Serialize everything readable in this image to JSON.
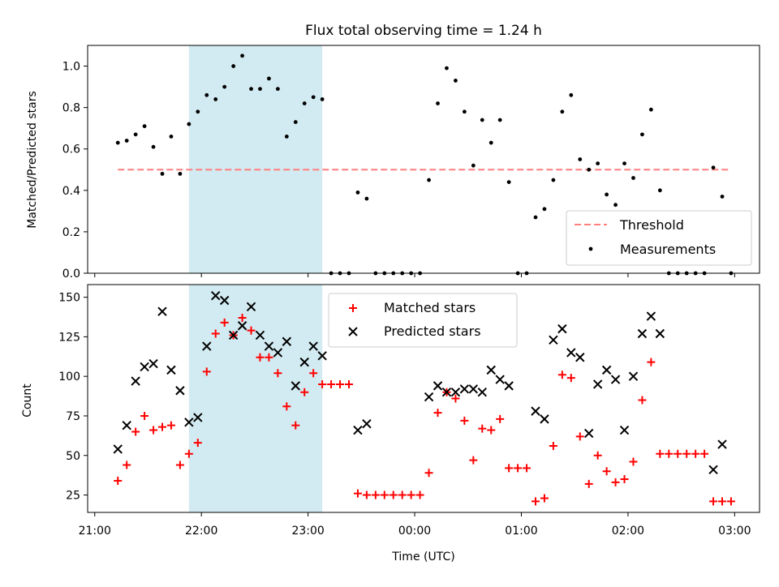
{
  "title": "Flux total observing time = 1.24 h",
  "colors": {
    "shade": "#add8e6",
    "threshold": "#ff7f7f",
    "measurement": "#000000",
    "matched": "#ff0000",
    "predicted": "#000000"
  },
  "chart_data": [
    {
      "type": "scatter",
      "ylabel": "Matched/Predicted stars",
      "ylim": [
        0,
        1.1
      ],
      "yticks": [
        0.0,
        0.2,
        0.4,
        0.6,
        0.8,
        1.0
      ],
      "ytick_labels": [
        "0.0",
        "0.2",
        "0.4",
        "0.6",
        "0.8",
        "1.0"
      ],
      "shaded_span": [
        "21:53",
        "23:08"
      ],
      "threshold": {
        "name": "Threshold",
        "value": 0.5,
        "x_range": [
          "21:13",
          "02:58"
        ]
      },
      "legend": {
        "placement": "lower-right",
        "entries": [
          "Threshold",
          "Measurements"
        ]
      },
      "series": [
        {
          "name": "Measurements",
          "points": [
            [
              "21:13",
              0.63
            ],
            [
              "21:18",
              0.64
            ],
            [
              "21:23",
              0.67
            ],
            [
              "21:28",
              0.71
            ],
            [
              "21:33",
              0.61
            ],
            [
              "21:38",
              0.48
            ],
            [
              "21:43",
              0.66
            ],
            [
              "21:48",
              0.48
            ],
            [
              "21:53",
              0.72
            ],
            [
              "21:58",
              0.78
            ],
            [
              "22:03",
              0.86
            ],
            [
              "22:08",
              0.84
            ],
            [
              "22:13",
              0.9
            ],
            [
              "22:18",
              1.0
            ],
            [
              "22:23",
              1.05
            ],
            [
              "22:28",
              0.89
            ],
            [
              "22:33",
              0.89
            ],
            [
              "22:38",
              0.94
            ],
            [
              "22:43",
              0.89
            ],
            [
              "22:48",
              0.66
            ],
            [
              "22:53",
              0.73
            ],
            [
              "22:58",
              0.82
            ],
            [
              "23:03",
              0.85
            ],
            [
              "23:08",
              0.84
            ],
            [
              "23:13",
              0.0
            ],
            [
              "23:18",
              0.0
            ],
            [
              "23:23",
              0.0
            ],
            [
              "23:28",
              0.39
            ],
            [
              "23:33",
              0.36
            ],
            [
              "23:38",
              0.0
            ],
            [
              "23:43",
              0.0
            ],
            [
              "23:48",
              0.0
            ],
            [
              "23:53",
              0.0
            ],
            [
              "23:58",
              0.0
            ],
            [
              "00:03",
              0.0
            ],
            [
              "00:08",
              0.45
            ],
            [
              "00:13",
              0.82
            ],
            [
              "00:18",
              0.99
            ],
            [
              "00:23",
              0.93
            ],
            [
              "00:28",
              0.78
            ],
            [
              "00:33",
              0.52
            ],
            [
              "00:38",
              0.74
            ],
            [
              "00:43",
              0.63
            ],
            [
              "00:48",
              0.74
            ],
            [
              "00:53",
              0.44
            ],
            [
              "00:58",
              0.0
            ],
            [
              "01:03",
              0.0
            ],
            [
              "01:08",
              0.27
            ],
            [
              "01:13",
              0.31
            ],
            [
              "01:18",
              0.45
            ],
            [
              "01:23",
              0.78
            ],
            [
              "01:28",
              0.86
            ],
            [
              "01:33",
              0.55
            ],
            [
              "01:38",
              0.5
            ],
            [
              "01:43",
              0.53
            ],
            [
              "01:48",
              0.38
            ],
            [
              "01:53",
              0.33
            ],
            [
              "01:58",
              0.53
            ],
            [
              "02:03",
              0.46
            ],
            [
              "02:08",
              0.67
            ],
            [
              "02:13",
              0.79
            ],
            [
              "02:18",
              0.4
            ],
            [
              "02:23",
              0.0
            ],
            [
              "02:28",
              0.0
            ],
            [
              "02:33",
              0.0
            ],
            [
              "02:38",
              0.0
            ],
            [
              "02:43",
              0.0
            ],
            [
              "02:48",
              0.51
            ],
            [
              "02:53",
              0.37
            ],
            [
              "02:58",
              0.0
            ]
          ]
        }
      ]
    },
    {
      "type": "scatter",
      "xlabel": "Time (UTC)",
      "ylabel": "Count",
      "ylim": [
        14,
        158
      ],
      "yticks": [
        25,
        50,
        75,
        100,
        125,
        150
      ],
      "ytick_labels": [
        "25",
        "50",
        "75",
        "100",
        "125",
        "150"
      ],
      "shaded_span": [
        "21:53",
        "23:08"
      ],
      "xlim": [
        "20:56",
        "03:14"
      ],
      "xticks": [
        "21:00",
        "22:00",
        "23:00",
        "00:00",
        "01:00",
        "02:00",
        "03:00"
      ],
      "xtick_labels": [
        "21:00",
        "22:00",
        "23:00",
        "00:00",
        "01:00",
        "02:00",
        "03:00"
      ],
      "legend": {
        "placement": "upper-center",
        "entries": [
          "Matched stars",
          "Predicted stars"
        ]
      },
      "series": [
        {
          "name": "Matched stars",
          "points": [
            [
              "21:13",
              34
            ],
            [
              "21:18",
              44
            ],
            [
              "21:23",
              65
            ],
            [
              "21:28",
              75
            ],
            [
              "21:33",
              66
            ],
            [
              "21:38",
              68
            ],
            [
              "21:43",
              69
            ],
            [
              "21:48",
              44
            ],
            [
              "21:53",
              51
            ],
            [
              "21:58",
              58
            ],
            [
              "22:03",
              103
            ],
            [
              "22:08",
              127
            ],
            [
              "22:13",
              134
            ],
            [
              "22:18",
              126
            ],
            [
              "22:23",
              137
            ],
            [
              "22:28",
              129
            ],
            [
              "22:33",
              112
            ],
            [
              "22:38",
              112
            ],
            [
              "22:43",
              102
            ],
            [
              "22:48",
              81
            ],
            [
              "22:53",
              69
            ],
            [
              "22:58",
              90
            ],
            [
              "23:03",
              102
            ],
            [
              "23:08",
              95
            ],
            [
              "23:13",
              95
            ],
            [
              "23:18",
              95
            ],
            [
              "23:23",
              95
            ],
            [
              "23:28",
              26
            ],
            [
              "23:33",
              25
            ],
            [
              "23:38",
              25
            ],
            [
              "23:43",
              25
            ],
            [
              "23:48",
              25
            ],
            [
              "23:53",
              25
            ],
            [
              "23:58",
              25
            ],
            [
              "00:03",
              25
            ],
            [
              "00:08",
              39
            ],
            [
              "00:13",
              77
            ],
            [
              "00:18",
              90
            ],
            [
              "00:23",
              86
            ],
            [
              "00:28",
              72
            ],
            [
              "00:33",
              47
            ],
            [
              "00:38",
              67
            ],
            [
              "00:43",
              66
            ],
            [
              "00:48",
              73
            ],
            [
              "00:53",
              42
            ],
            [
              "00:58",
              42
            ],
            [
              "01:03",
              42
            ],
            [
              "01:08",
              21
            ],
            [
              "01:13",
              23
            ],
            [
              "01:18",
              56
            ],
            [
              "01:23",
              101
            ],
            [
              "01:28",
              99
            ],
            [
              "01:33",
              62
            ],
            [
              "01:38",
              32
            ],
            [
              "01:43",
              50
            ],
            [
              "01:48",
              40
            ],
            [
              "01:53",
              33
            ],
            [
              "01:58",
              35
            ],
            [
              "02:03",
              46
            ],
            [
              "02:08",
              85
            ],
            [
              "02:13",
              109
            ],
            [
              "02:18",
              51
            ],
            [
              "02:23",
              51
            ],
            [
              "02:28",
              51
            ],
            [
              "02:33",
              51
            ],
            [
              "02:38",
              51
            ],
            [
              "02:43",
              51
            ],
            [
              "02:48",
              21
            ],
            [
              "02:53",
              21
            ],
            [
              "02:58",
              21
            ]
          ]
        },
        {
          "name": "Predicted stars",
          "points": [
            [
              "21:13",
              54
            ],
            [
              "21:18",
              69
            ],
            [
              "21:23",
              97
            ],
            [
              "21:28",
              106
            ],
            [
              "21:33",
              108
            ],
            [
              "21:38",
              141
            ],
            [
              "21:43",
              104
            ],
            [
              "21:48",
              91
            ],
            [
              "21:53",
              71
            ],
            [
              "21:58",
              74
            ],
            [
              "22:03",
              119
            ],
            [
              "22:08",
              151
            ],
            [
              "22:13",
              148
            ],
            [
              "22:18",
              126
            ],
            [
              "22:23",
              132
            ],
            [
              "22:28",
              144
            ],
            [
              "22:33",
              126
            ],
            [
              "22:38",
              119
            ],
            [
              "22:43",
              115
            ],
            [
              "22:48",
              122
            ],
            [
              "22:53",
              94
            ],
            [
              "22:58",
              109
            ],
            [
              "23:03",
              119
            ],
            [
              "23:08",
              113
            ],
            [
              "23:28",
              66
            ],
            [
              "23:33",
              70
            ],
            [
              "00:08",
              87
            ],
            [
              "00:13",
              94
            ],
            [
              "00:18",
              90
            ],
            [
              "00:23",
              90
            ],
            [
              "00:28",
              92
            ],
            [
              "00:33",
              92
            ],
            [
              "00:38",
              90
            ],
            [
              "00:43",
              104
            ],
            [
              "00:48",
              98
            ],
            [
              "00:53",
              94
            ],
            [
              "01:08",
              78
            ],
            [
              "01:13",
              73
            ],
            [
              "01:18",
              123
            ],
            [
              "01:23",
              130
            ],
            [
              "01:28",
              115
            ],
            [
              "01:33",
              112
            ],
            [
              "01:38",
              64
            ],
            [
              "01:43",
              95
            ],
            [
              "01:48",
              104
            ],
            [
              "01:53",
              98
            ],
            [
              "01:58",
              66
            ],
            [
              "02:03",
              100
            ],
            [
              "02:08",
              127
            ],
            [
              "02:13",
              138
            ],
            [
              "02:18",
              127
            ],
            [
              "02:48",
              41
            ],
            [
              "02:53",
              57
            ]
          ]
        }
      ]
    }
  ]
}
